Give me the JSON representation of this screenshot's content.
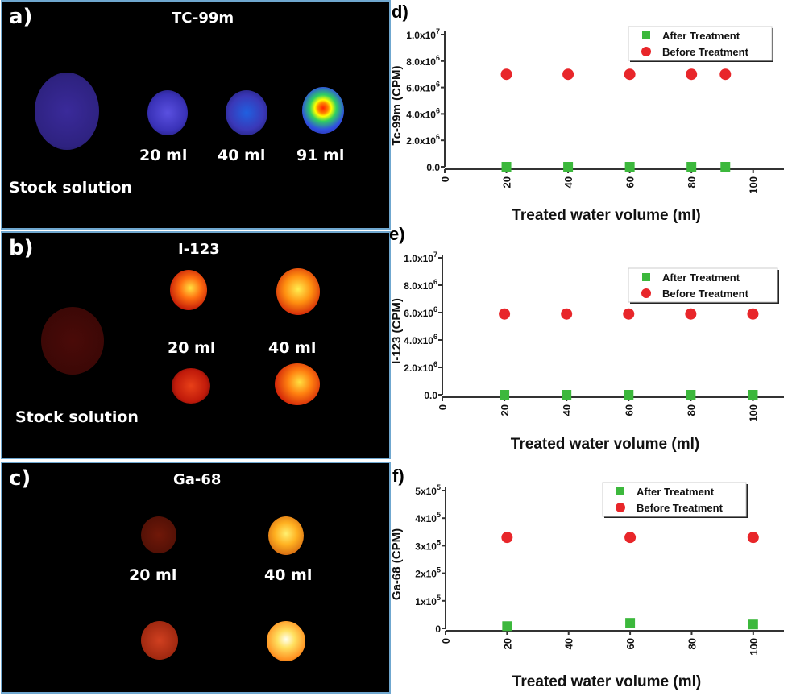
{
  "panels": {
    "a": {
      "label": "a)",
      "title": "TC-99m",
      "captions": [
        "20 ml",
        "40 ml",
        "91 ml",
        "Stock solution"
      ]
    },
    "b": {
      "label": "b)",
      "title": "I-123",
      "captions": [
        "20 ml",
        "40 ml",
        "Stock solution"
      ]
    },
    "c": {
      "label": "c)",
      "title": "Ga-68",
      "captions": [
        "20 ml",
        "40 ml"
      ]
    }
  },
  "chart_data": [
    {
      "panel_label": "d)",
      "type": "scatter",
      "xlabel": "Treated water volume (ml)",
      "ylabel": "Tc-99m  (CPM)",
      "xlim": [
        0,
        110
      ],
      "ylim": [
        0,
        10000000
      ],
      "xticks": [
        "0",
        "20",
        "40",
        "60",
        "80",
        "100"
      ],
      "yticks": [
        {
          "v": 0,
          "base": "0.0",
          "exp": ""
        },
        {
          "v": 2000000,
          "base": "2.0x10",
          "exp": "6"
        },
        {
          "v": 4000000,
          "base": "4.0x10",
          "exp": "6"
        },
        {
          "v": 6000000,
          "base": "6.0x10",
          "exp": "6"
        },
        {
          "v": 8000000,
          "base": "8.0x10",
          "exp": "6"
        },
        {
          "v": 10000000,
          "base": "1.0x10",
          "exp": "7"
        }
      ],
      "legend": "top-right",
      "series": [
        {
          "name": "After Treatment",
          "marker": "square",
          "color": "#3cb83c",
          "x": [
            20,
            40,
            60,
            80,
            91
          ],
          "y": [
            0,
            0,
            0,
            0,
            0
          ]
        },
        {
          "name": "Before Treatment",
          "marker": "circle",
          "color": "#e8262a",
          "x": [
            20,
            40,
            60,
            80,
            91
          ],
          "y": [
            7000000,
            7000000,
            7000000,
            7000000,
            7000000
          ]
        }
      ]
    },
    {
      "panel_label": "e)",
      "type": "scatter",
      "xlabel": "Treated water volume (ml)",
      "ylabel": "I-123  (CPM)",
      "xlim": [
        0,
        110
      ],
      "ylim": [
        0,
        10000000
      ],
      "xticks": [
        "0",
        "20",
        "40",
        "60",
        "80",
        "100"
      ],
      "yticks": [
        {
          "v": 0,
          "base": "0.0",
          "exp": ""
        },
        {
          "v": 2000000,
          "base": "2.0x10",
          "exp": "6"
        },
        {
          "v": 4000000,
          "base": "4.0x10",
          "exp": "6"
        },
        {
          "v": 6000000,
          "base": "6.0x10",
          "exp": "6"
        },
        {
          "v": 8000000,
          "base": "8.0x10",
          "exp": "6"
        },
        {
          "v": 10000000,
          "base": "1.0x10",
          "exp": "7"
        }
      ],
      "legend": "top-right",
      "series": [
        {
          "name": "After Treatment",
          "marker": "square",
          "color": "#3cb83c",
          "x": [
            20,
            40,
            60,
            80,
            100
          ],
          "y": [
            0,
            0,
            0,
            0,
            0
          ]
        },
        {
          "name": "Before Treatment",
          "marker": "circle",
          "color": "#e8262a",
          "x": [
            20,
            40,
            60,
            80,
            100
          ],
          "y": [
            5900000,
            5900000,
            5900000,
            5900000,
            5900000
          ]
        }
      ]
    },
    {
      "panel_label": "f)",
      "type": "scatter",
      "xlabel": "Treated water volume (ml)",
      "ylabel": "Ga-68  (CPM)",
      "xlim": [
        0,
        110
      ],
      "ylim": [
        0,
        500000
      ],
      "xticks": [
        "0",
        "20",
        "40",
        "60",
        "80",
        "100"
      ],
      "yticks": [
        {
          "v": 0,
          "base": "0",
          "exp": ""
        },
        {
          "v": 100000,
          "base": "1x10",
          "exp": "5"
        },
        {
          "v": 200000,
          "base": "2x10",
          "exp": "5"
        },
        {
          "v": 300000,
          "base": "3x10",
          "exp": "5"
        },
        {
          "v": 400000,
          "base": "4x10",
          "exp": "5"
        },
        {
          "v": 500000,
          "base": "5x10",
          "exp": "5"
        }
      ],
      "legend": "top-right",
      "series": [
        {
          "name": "After Treatment",
          "marker": "square",
          "color": "#3cb83c",
          "x": [
            20,
            60,
            100
          ],
          "y": [
            8000,
            20000,
            14000
          ]
        },
        {
          "name": "Before Treatment",
          "marker": "circle",
          "color": "#e8262a",
          "x": [
            20,
            60,
            100
          ],
          "y": [
            330000,
            330000,
            330000
          ]
        }
      ]
    }
  ]
}
